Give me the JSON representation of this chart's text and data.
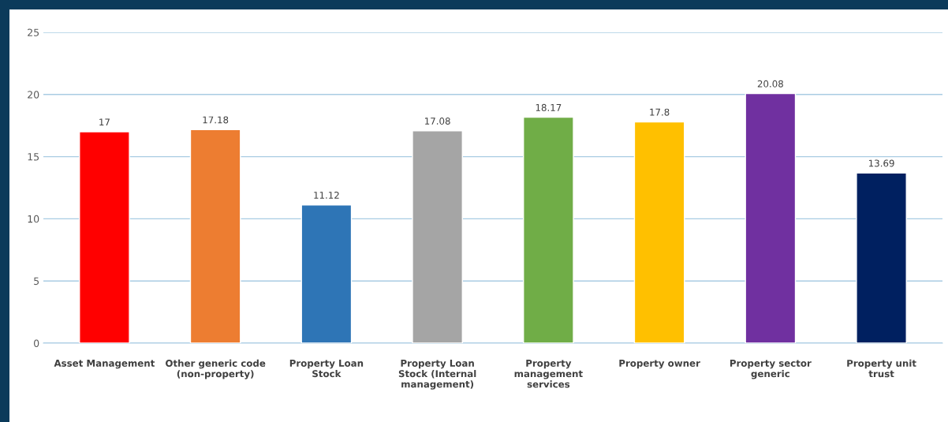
{
  "chart_data": {
    "type": "bar",
    "categories": [
      "Asset Management",
      "Other generic code (non-property)",
      "Property Loan Stock",
      "Property Loan Stock (Internal management)",
      "Property management services",
      "Property owner",
      "Property sector generic",
      "Property unit trust"
    ],
    "values": [
      17,
      17.18,
      11.12,
      17.08,
      18.17,
      17.8,
      20.08,
      13.69
    ],
    "colors": [
      "#ff0000",
      "#ed7d31",
      "#2e75b6",
      "#a5a5a5",
      "#70ad47",
      "#ffc000",
      "#7030a0",
      "#002060"
    ],
    "ylim": [
      0,
      25
    ],
    "yticks": [
      0,
      5,
      10,
      15,
      20,
      25
    ],
    "grid": "y",
    "data_labels": true
  }
}
